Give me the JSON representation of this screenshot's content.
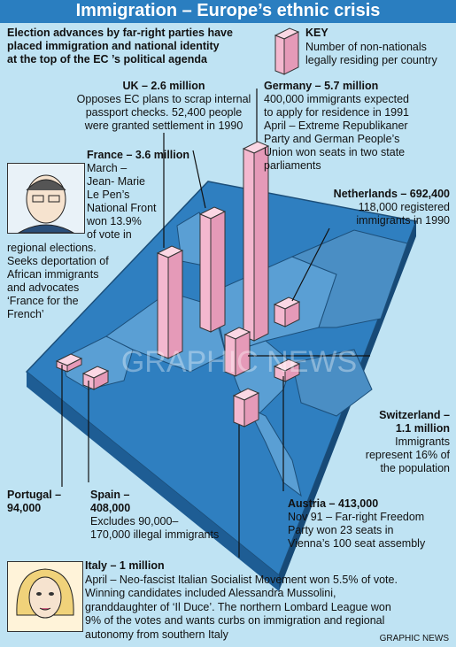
{
  "title": "Immigration – Europe’s ethnic crisis",
  "intro": [
    "Election advances by far-right parties have",
    "placed immigration and national identity",
    "at the top of the EC ’s political agenda"
  ],
  "key": {
    "heading": "KEY",
    "lines": [
      "Number of non-nationals",
      "legally residing per country"
    ]
  },
  "countries": {
    "uk": {
      "name": "UK – 2.6 million",
      "lines": [
        "Opposes EC plans to scrap internal",
        "passport checks. 52,400 people",
        "were granted settlement in 1990"
      ]
    },
    "germany": {
      "name": "Germany – 5.7 million",
      "lines": [
        "400,000 immigrants expected",
        "to apply for residence in 1991",
        "April – Extreme Republikaner",
        "Party and German People’s",
        "Union won seats in two state",
        "parliaments"
      ]
    },
    "france": {
      "name": "France – 3.6 million",
      "lines": [
        "March –",
        "Jean- Marie",
        "Le Pen’s",
        "National Front",
        "won 13.9%",
        "of vote in",
        "regional elections.",
        "Seeks deportation of",
        "African immigrants",
        "and advocates",
        "‘France for the",
        "French’"
      ]
    },
    "netherlands": {
      "name": "Netherlands – 692,400",
      "lines": [
        "118,000 registered",
        "immigrants in 1990"
      ]
    },
    "switzerland": {
      "name": [
        "Switzerland –",
        "1.1 million"
      ],
      "lines": [
        "Immigrants",
        "represent 16% of",
        "the population"
      ]
    },
    "portugal": {
      "name": [
        "Portugal –",
        "94,000"
      ]
    },
    "spain": {
      "name": [
        "Spain –",
        "408,000"
      ],
      "lines": [
        "Excludes 90,000–",
        "170,000 illegal immigrants"
      ]
    },
    "austria": {
      "name": "Austria – 413,000",
      "lines": [
        "Nov 91 – Far-right Freedom",
        "Party won 23 seats in",
        "Vienna’s 100 seat assembly"
      ]
    },
    "italy": {
      "name": "Italy – 1 million",
      "lines": [
        "April – Neo-fascist Italian Socialist Movement won 5.5% of vote.",
        "Winning candidates included Alessandra Mussolini,",
        "granddaughter of ‘Il Duce’. The northern Lombard League won",
        "9% of the votes and wants curbs on immigration and regional",
        "autonomy from southern Italy"
      ]
    }
  },
  "watermark": "GRAPHIC NEWS",
  "credit": "GRAPHIC NEWS",
  "colors": {
    "title_bg": "#2a7ec0",
    "sea": "#bfe3f3",
    "land": "#2f7fc0",
    "bar": "#f4b8cf"
  }
}
